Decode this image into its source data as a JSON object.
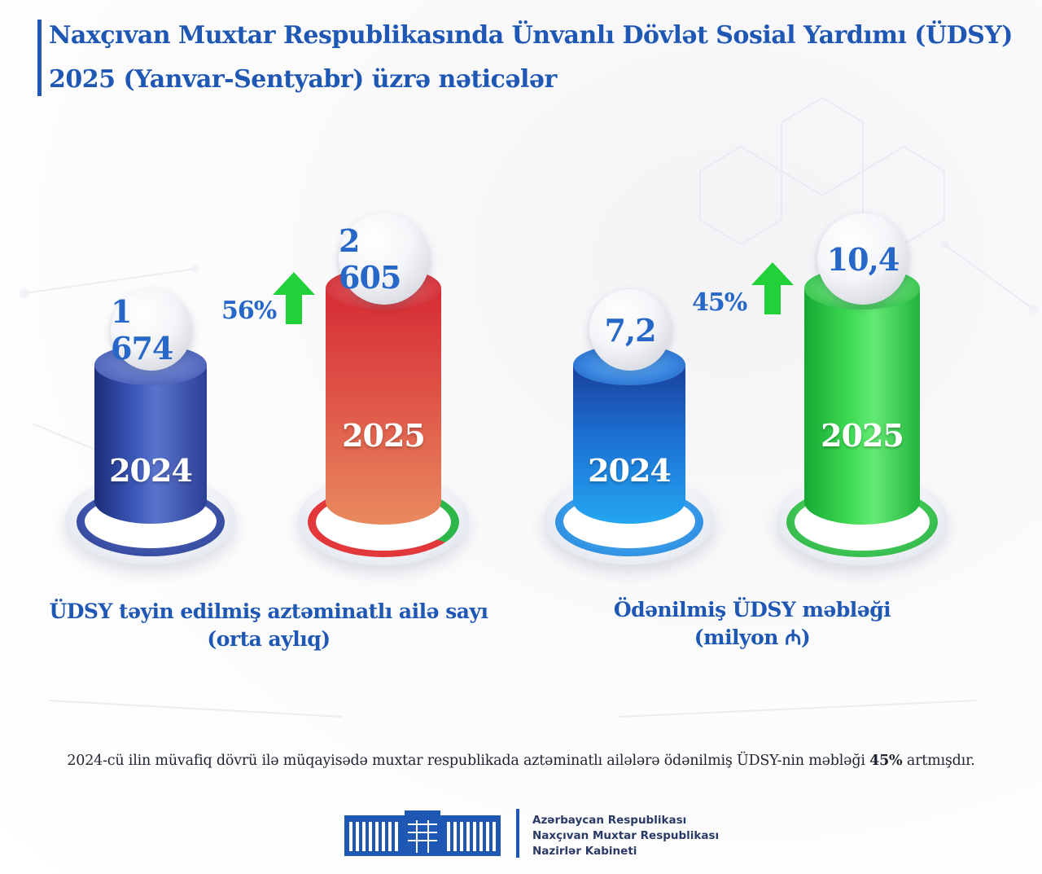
{
  "title": {
    "line1": "Naxçıvan Muxtar Respublikasında Ünvanlı Dövlət Sosial Yardımı (ÜDSY)",
    "line2": "2025 (Yanvar-Sentyabr) üzrə nəticələr"
  },
  "colors": {
    "title_blue": "#1f57b5",
    "value_blue": "#2667c8",
    "arrow_green": "#22d13a",
    "bar_2024_families": "#2a3f94",
    "bar_2025_families": "#e2383c",
    "bar_2024_amount": "#1e8fe6",
    "bar_2025_amount": "#2fcf48"
  },
  "chart_data": [
    {
      "type": "bar",
      "categories": [
        "2024",
        "2025"
      ],
      "values": [
        1674,
        2605
      ],
      "value_labels": [
        "1 674",
        "2 605"
      ],
      "change_label": "56%",
      "caption_line1": "ÜDSY təyin edilmiş aztəminatlı ailə sayı",
      "caption_line2": "(orta aylıq)"
    },
    {
      "type": "bar",
      "categories": [
        "2024",
        "2025"
      ],
      "values": [
        7.2,
        10.4
      ],
      "value_labels": [
        "7,2",
        "10,4"
      ],
      "change_label": "45%",
      "caption_line1": "Ödənilmiş ÜDSY məbləği",
      "caption_line2": "(milyon ₼)"
    }
  ],
  "footnote": {
    "before": "2024-cü ilin müvafiq dövrü ilə müqayisədə muxtar respublikada aztəminatlı ailələrə ödənilmiş ÜDSY-nin məbləği ",
    "bold": "45%",
    "after": " artmışdır."
  },
  "organization": {
    "line1": "Azərbaycan Respublikası",
    "line2": "Naxçıvan Muxtar Respublikası",
    "line3": "Nazirlər Kabineti"
  }
}
